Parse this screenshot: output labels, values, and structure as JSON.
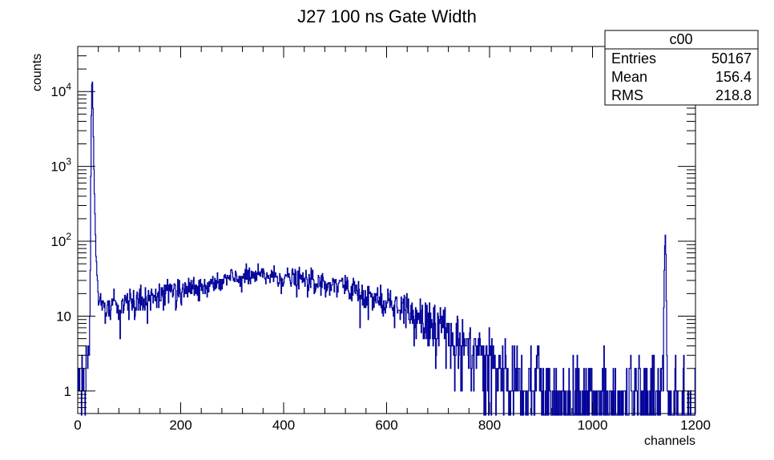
{
  "chart_data": {
    "type": "histogram",
    "title": "J27 100 ns Gate Width",
    "xlabel": "channels",
    "ylabel": "counts",
    "xlim": [
      0,
      1200
    ],
    "ylim": [
      0.5,
      40000
    ],
    "yscale": "log",
    "bins": 1200,
    "line_color": "#000099",
    "x_ticks": [
      0,
      200,
      400,
      600,
      800,
      1000,
      1200
    ],
    "x_tick_labels": [
      "0",
      "200",
      "400",
      "600",
      "800",
      "1000",
      "1200"
    ],
    "y_ticks": [
      {
        "value": 1,
        "base": "1",
        "exp": ""
      },
      {
        "value": 10,
        "base": "10",
        "exp": ""
      },
      {
        "value": 100,
        "base": "10",
        "exp": "2"
      },
      {
        "value": 1000,
        "base": "10",
        "exp": "3"
      },
      {
        "value": 10000,
        "base": "10",
        "exp": "4"
      }
    ],
    "shape_points": [
      [
        0,
        0.5
      ],
      [
        15,
        1.5
      ],
      [
        22,
        5
      ],
      [
        24,
        12
      ],
      [
        26,
        3000
      ],
      [
        28,
        20000
      ],
      [
        30,
        4000
      ],
      [
        32,
        600
      ],
      [
        35,
        80
      ],
      [
        40,
        16
      ],
      [
        50,
        13
      ],
      [
        100,
        16
      ],
      [
        200,
        22
      ],
      [
        300,
        32
      ],
      [
        360,
        35
      ],
      [
        400,
        33
      ],
      [
        500,
        27
      ],
      [
        600,
        16
      ],
      [
        700,
        8
      ],
      [
        800,
        2.5
      ],
      [
        900,
        1.1
      ],
      [
        1000,
        0.75
      ],
      [
        1100,
        0.7
      ],
      [
        1135,
        0.9
      ],
      [
        1138,
        8
      ],
      [
        1140,
        70
      ],
      [
        1142,
        140
      ],
      [
        1144,
        6
      ],
      [
        1148,
        0.4
      ],
      [
        1200,
        0.4
      ]
    ],
    "stats_box": {
      "name": "c00",
      "rows": [
        {
          "label": "Entries",
          "value": "50167"
        },
        {
          "label": "Mean",
          "value": "156.4"
        },
        {
          "label": "RMS",
          "value": "218.8"
        }
      ]
    }
  }
}
